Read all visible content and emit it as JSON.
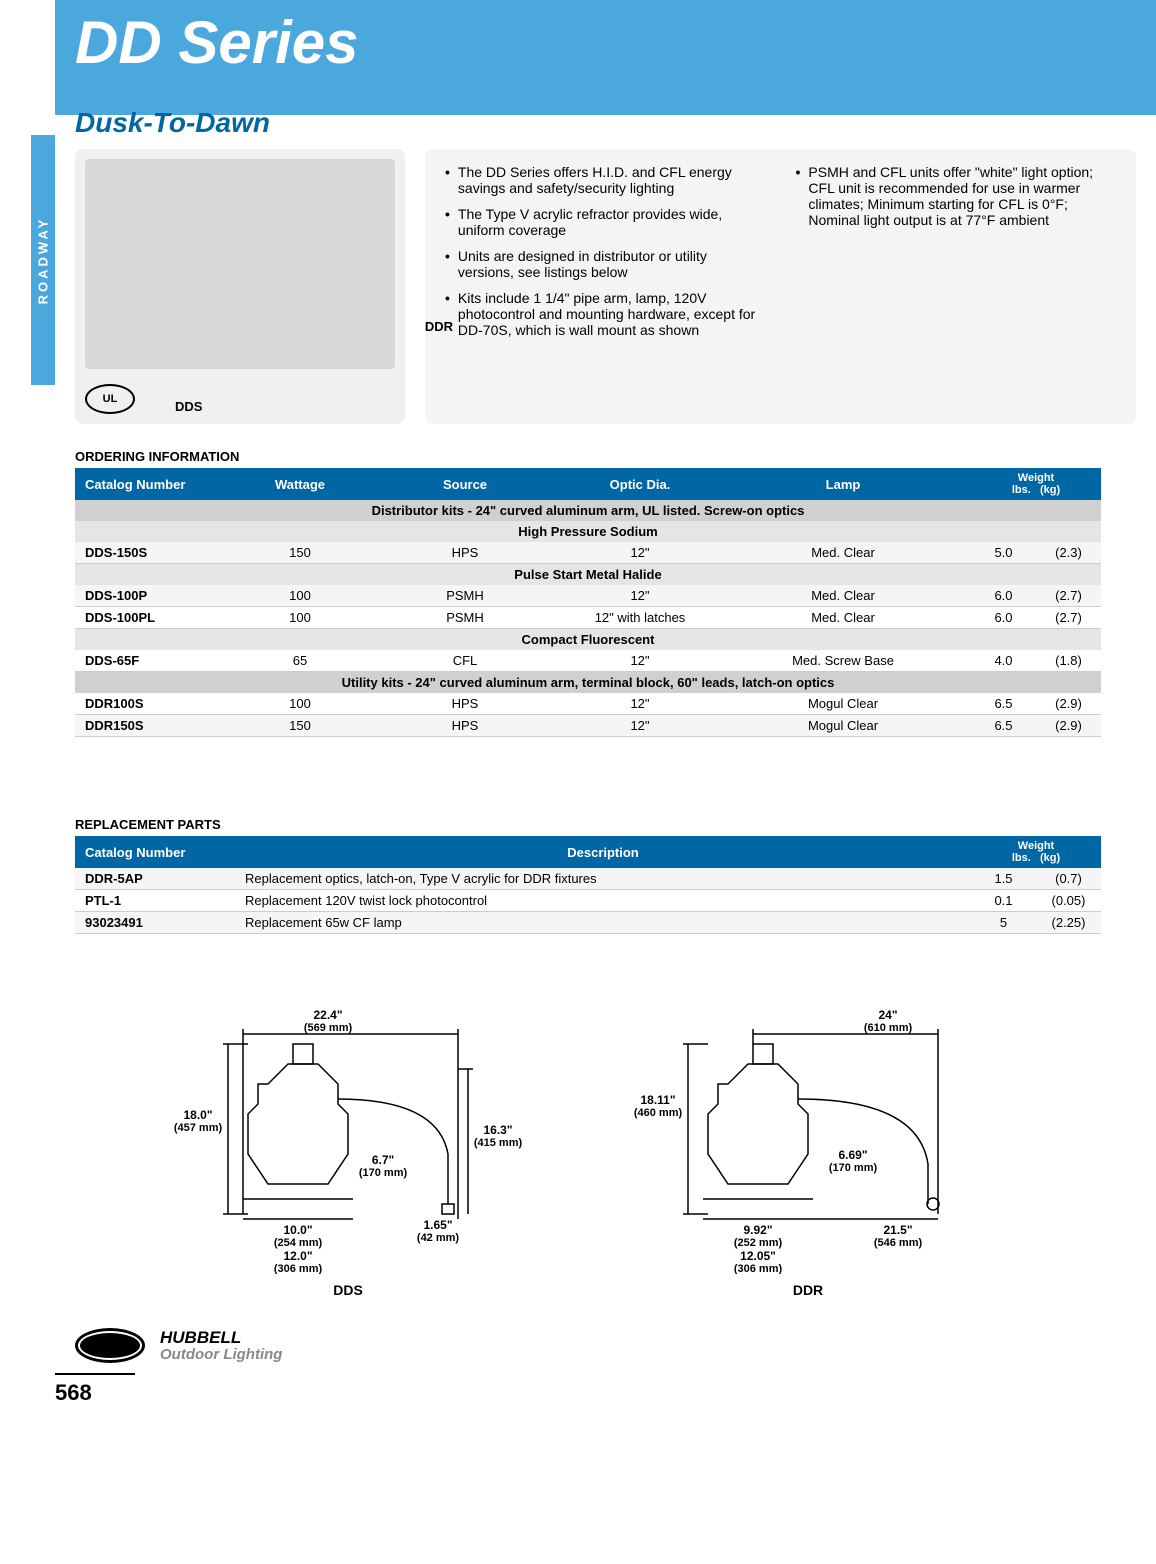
{
  "header": {
    "title": "DD Series",
    "subtitle": "Dusk-To-Dawn"
  },
  "sidebar": {
    "text": "ROADWAY"
  },
  "photo": {
    "ddr": "DDR",
    "dds": "DDS",
    "ul": "UL"
  },
  "bullets_left": [
    "The DD Series offers H.I.D. and CFL energy savings and safety/security lighting",
    "The Type V acrylic refractor provides wide, uniform coverage",
    "Units are designed in distributor or utility versions, see listings below",
    "Kits include 1 1/4\" pipe arm, lamp, 120V photocontrol and mounting hardware, except for DD-70S, which is wall mount as shown"
  ],
  "bullets_right": [
    "PSMH and CFL units offer \"white\" light option; CFL unit is recommended for use in warmer climates; Minimum starting for CFL is 0°F; Nominal light output is at 77°F ambient"
  ],
  "ordering": {
    "heading": "ORDERING INFORMATION",
    "columns": [
      "Catalog Number",
      "Wattage",
      "Source",
      "Optic Dia.",
      "Lamp",
      "Weight lbs.",
      "(kg)"
    ],
    "weight_header": "Weight",
    "weight_sub1": "lbs.",
    "weight_sub2": "(kg)",
    "sections": [
      {
        "title": "Distributor kits - 24\" curved aluminum arm, UL listed. Screw-on optics",
        "groups": [
          {
            "sub": "High Pressure Sodium",
            "rows": [
              [
                "DDS-150S",
                "150",
                "HPS",
                "12\"",
                "Med. Clear",
                "5.0",
                "(2.3)"
              ]
            ]
          },
          {
            "sub": "Pulse Start Metal Halide",
            "rows": [
              [
                "DDS-100P",
                "100",
                "PSMH",
                "12\"",
                "Med. Clear",
                "6.0",
                "(2.7)"
              ],
              [
                "DDS-100PL",
                "100",
                "PSMH",
                "12\" with latches",
                "Med. Clear",
                "6.0",
                "(2.7)"
              ]
            ]
          },
          {
            "sub": "Compact Fluorescent",
            "rows": [
              [
                "DDS-65F",
                "65",
                "CFL",
                "12\"",
                "Med. Screw Base",
                "4.0",
                "(1.8)"
              ]
            ]
          }
        ]
      },
      {
        "title": "Utility kits - 24\" curved aluminum arm, terminal block, 60\" leads, latch-on optics",
        "groups": [
          {
            "sub": null,
            "rows": [
              [
                "DDR100S",
                "100",
                "HPS",
                "12\"",
                "Mogul Clear",
                "6.5",
                "(2.9)"
              ],
              [
                "DDR150S",
                "150",
                "HPS",
                "12\"",
                "Mogul Clear",
                "6.5",
                "(2.9)"
              ]
            ]
          }
        ]
      }
    ]
  },
  "replacement": {
    "heading": "REPLACEMENT PARTS",
    "columns": [
      "Catalog Number",
      "Description",
      "Weight lbs.",
      "(kg)"
    ],
    "rows": [
      [
        "DDR-5AP",
        "Replacement optics, latch-on, Type V acrylic for DDR fixtures",
        "1.5",
        "(0.7)"
      ],
      [
        "PTL-1",
        "Replacement 120V twist lock photocontrol",
        "0.1",
        "(0.05)"
      ],
      [
        "93023491",
        "Replacement 65w CF lamp",
        "5",
        "(2.25)"
      ]
    ]
  },
  "dims": {
    "dds": {
      "label": "DDS",
      "d": {
        "w_top": "22.4\"",
        "w_top_mm": "(569 mm)",
        "h_left": "18.0\"",
        "h_left_mm": "(457 mm)",
        "h_right": "16.3\"",
        "h_right_mm": "(415 mm)",
        "mid": "6.7\"",
        "mid_mm": "(170 mm)",
        "base": "1.65\"",
        "base_mm": "(42 mm)",
        "w1": "10.0\"",
        "w1_mm": "(254 mm)",
        "w2": "12.0\"",
        "w2_mm": "(306 mm)"
      }
    },
    "ddr": {
      "label": "DDR",
      "d": {
        "w_top": "24\"",
        "w_top_mm": "(610 mm)",
        "h_left": "18.11\"",
        "h_left_mm": "(460 mm)",
        "mid": "6.69\"",
        "mid_mm": "(170 mm)",
        "base": "21.5\"",
        "base_mm": "(546 mm)",
        "w1": "9.92\"",
        "w1_mm": "(252 mm)",
        "w2": "12.05\"",
        "w2_mm": "(306 mm)"
      }
    }
  },
  "footer": {
    "brand": "HUBBELL",
    "sub": "Outdoor Lighting",
    "page": "568"
  },
  "colors": {
    "blue": "#4ba8dc",
    "darkblue": "#0066a4",
    "grayrow": "#d0d0d0",
    "subrow": "#e5e5e5"
  }
}
